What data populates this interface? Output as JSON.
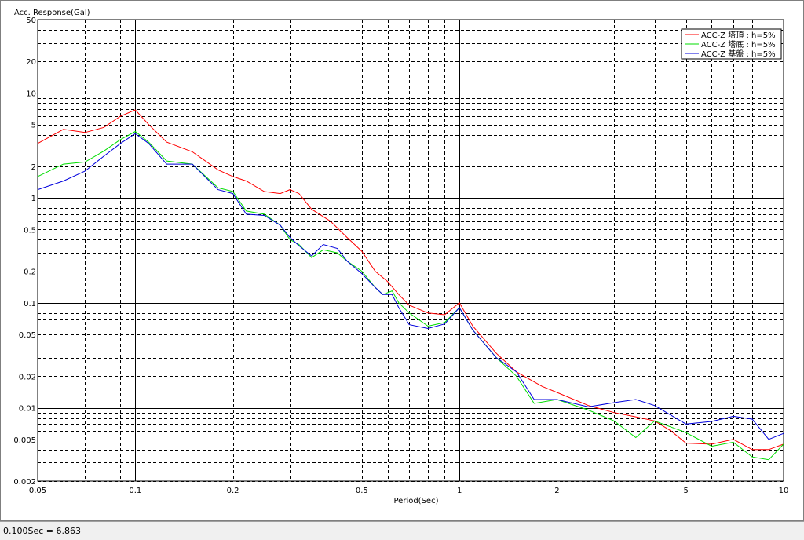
{
  "chart_data": {
    "type": "line",
    "ylabel": "Acc. Response(Gal)",
    "xlabel": "Period(Sec)",
    "x_scale": "log",
    "y_scale": "log",
    "xlim": [
      0.05,
      10
    ],
    "ylim": [
      0.002,
      50
    ],
    "x_ticks": [
      0.05,
      0.1,
      0.2,
      0.5,
      1,
      2,
      5,
      10
    ],
    "x_tick_labels": [
      "0.05",
      "0.1",
      "0.2",
      "0.5",
      "1",
      "2",
      "5",
      "10"
    ],
    "y_ticks": [
      0.002,
      0.005,
      0.01,
      0.02,
      0.05,
      0.1,
      0.2,
      0.5,
      1,
      2,
      5,
      10,
      20,
      50
    ],
    "y_tick_labels": [
      "0.002",
      "0.005",
      "0.01",
      "0.02",
      "0.05",
      "0.1",
      "0.2",
      "0.5",
      "1",
      "2",
      "5",
      "10",
      "20",
      "50"
    ],
    "grid": true,
    "legend_position": "top-right",
    "series": [
      {
        "name": "ACC-Z 塔頂 : h=5%",
        "color": "#ff0000",
        "points": [
          [
            0.05,
            3.3
          ],
          [
            0.06,
            4.5
          ],
          [
            0.07,
            4.2
          ],
          [
            0.08,
            4.7
          ],
          [
            0.09,
            6.0
          ],
          [
            0.1,
            6.9
          ],
          [
            0.11,
            5.0
          ],
          [
            0.125,
            3.4
          ],
          [
            0.15,
            2.75
          ],
          [
            0.18,
            1.85
          ],
          [
            0.2,
            1.6
          ],
          [
            0.22,
            1.45
          ],
          [
            0.25,
            1.15
          ],
          [
            0.28,
            1.1
          ],
          [
            0.3,
            1.2
          ],
          [
            0.32,
            1.1
          ],
          [
            0.35,
            0.78
          ],
          [
            0.4,
            0.6
          ],
          [
            0.45,
            0.42
          ],
          [
            0.5,
            0.31
          ],
          [
            0.55,
            0.2
          ],
          [
            0.6,
            0.16
          ],
          [
            0.65,
            0.12
          ],
          [
            0.7,
            0.095
          ],
          [
            0.8,
            0.08
          ],
          [
            0.9,
            0.077
          ],
          [
            1.0,
            0.1
          ],
          [
            1.1,
            0.06
          ],
          [
            1.3,
            0.033
          ],
          [
            1.5,
            0.022
          ],
          [
            1.8,
            0.016
          ],
          [
            2.0,
            0.014
          ],
          [
            2.5,
            0.0105
          ],
          [
            3.0,
            0.009
          ],
          [
            3.5,
            0.0082
          ],
          [
            4.0,
            0.0075
          ],
          [
            4.5,
            0.006
          ],
          [
            5.0,
            0.0046
          ],
          [
            6.0,
            0.0045
          ],
          [
            7.0,
            0.005
          ],
          [
            8.0,
            0.004
          ],
          [
            9.0,
            0.004
          ],
          [
            10.0,
            0.0045
          ]
        ]
      },
      {
        "name": "ACC-Z 塔底 : h=5%",
        "color": "#00dd00",
        "points": [
          [
            0.05,
            1.6
          ],
          [
            0.06,
            2.1
          ],
          [
            0.07,
            2.2
          ],
          [
            0.08,
            2.8
          ],
          [
            0.09,
            3.6
          ],
          [
            0.1,
            4.3
          ],
          [
            0.11,
            3.4
          ],
          [
            0.125,
            2.25
          ],
          [
            0.15,
            2.1
          ],
          [
            0.18,
            1.25
          ],
          [
            0.2,
            1.15
          ],
          [
            0.22,
            0.75
          ],
          [
            0.25,
            0.7
          ],
          [
            0.28,
            0.55
          ],
          [
            0.3,
            0.4
          ],
          [
            0.32,
            0.36
          ],
          [
            0.35,
            0.27
          ],
          [
            0.38,
            0.32
          ],
          [
            0.42,
            0.3
          ],
          [
            0.45,
            0.25
          ],
          [
            0.5,
            0.2
          ],
          [
            0.55,
            0.14
          ],
          [
            0.58,
            0.12
          ],
          [
            0.62,
            0.13
          ],
          [
            0.65,
            0.1
          ],
          [
            0.7,
            0.08
          ],
          [
            0.8,
            0.06
          ],
          [
            0.9,
            0.065
          ],
          [
            1.0,
            0.09
          ],
          [
            1.1,
            0.055
          ],
          [
            1.3,
            0.03
          ],
          [
            1.5,
            0.02
          ],
          [
            1.7,
            0.011
          ],
          [
            2.0,
            0.012
          ],
          [
            2.5,
            0.0095
          ],
          [
            3.0,
            0.0075
          ],
          [
            3.5,
            0.0052
          ],
          [
            4.0,
            0.0075
          ],
          [
            5.0,
            0.0058
          ],
          [
            6.0,
            0.0043
          ],
          [
            7.0,
            0.0047
          ],
          [
            8.0,
            0.0034
          ],
          [
            9.0,
            0.0032
          ],
          [
            10.0,
            0.0045
          ]
        ]
      },
      {
        "name": "ACC-Z 基盤 : h=5%",
        "color": "#0000dd",
        "points": [
          [
            0.05,
            1.2
          ],
          [
            0.06,
            1.45
          ],
          [
            0.07,
            1.8
          ],
          [
            0.08,
            2.5
          ],
          [
            0.09,
            3.3
          ],
          [
            0.1,
            4.1
          ],
          [
            0.11,
            3.3
          ],
          [
            0.125,
            2.1
          ],
          [
            0.15,
            2.1
          ],
          [
            0.18,
            1.2
          ],
          [
            0.2,
            1.1
          ],
          [
            0.22,
            0.7
          ],
          [
            0.25,
            0.68
          ],
          [
            0.28,
            0.55
          ],
          [
            0.3,
            0.42
          ],
          [
            0.32,
            0.35
          ],
          [
            0.35,
            0.28
          ],
          [
            0.38,
            0.36
          ],
          [
            0.42,
            0.33
          ],
          [
            0.45,
            0.25
          ],
          [
            0.5,
            0.19
          ],
          [
            0.55,
            0.14
          ],
          [
            0.58,
            0.12
          ],
          [
            0.62,
            0.12
          ],
          [
            0.65,
            0.09
          ],
          [
            0.7,
            0.062
          ],
          [
            0.8,
            0.057
          ],
          [
            0.9,
            0.063
          ],
          [
            1.0,
            0.09
          ],
          [
            1.1,
            0.055
          ],
          [
            1.3,
            0.03
          ],
          [
            1.5,
            0.022
          ],
          [
            1.7,
            0.012
          ],
          [
            2.0,
            0.012
          ],
          [
            2.5,
            0.0102
          ],
          [
            3.0,
            0.0112
          ],
          [
            3.5,
            0.012
          ],
          [
            4.0,
            0.0105
          ],
          [
            5.0,
            0.007
          ],
          [
            6.0,
            0.0074
          ],
          [
            7.0,
            0.0083
          ],
          [
            8.0,
            0.0078
          ],
          [
            9.0,
            0.005
          ],
          [
            10.0,
            0.0057
          ]
        ]
      }
    ]
  },
  "status": {
    "text": "0.100Sec = 6.863"
  }
}
